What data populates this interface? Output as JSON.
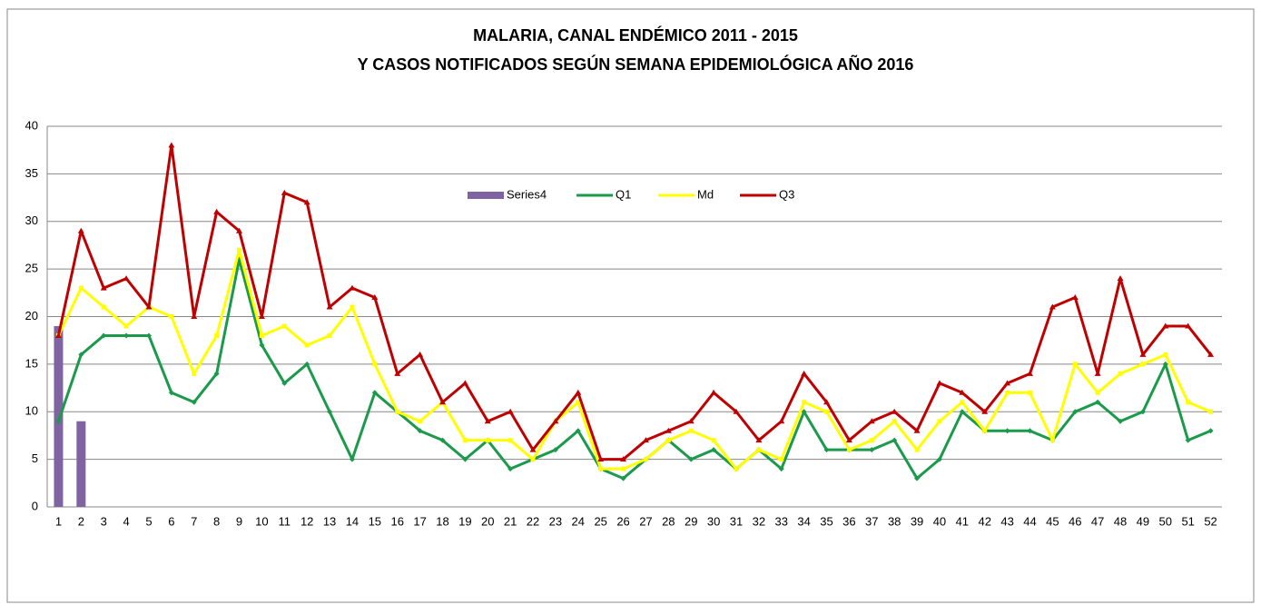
{
  "chart_data": {
    "type": "bar-line",
    "title": [
      "MALARIA, CANAL ENDÉMICO 2011 - 2015",
      "Y CASOS NOTIFICADOS SEGÚN SEMANA EPIDEMIOLÓGICA AÑO 2016"
    ],
    "categories": [
      "1",
      "2",
      "3",
      "4",
      "5",
      "6",
      "7",
      "8",
      "9",
      "10",
      "11",
      "12",
      "13",
      "14",
      "15",
      "16",
      "17",
      "18",
      "19",
      "20",
      "21",
      "22",
      "23",
      "24",
      "25",
      "26",
      "27",
      "28",
      "29",
      "30",
      "31",
      "32",
      "33",
      "34",
      "35",
      "36",
      "37",
      "38",
      "39",
      "40",
      "41",
      "42",
      "43",
      "44",
      "45",
      "46",
      "47",
      "48",
      "49",
      "50",
      "51",
      "52"
    ],
    "series": [
      {
        "name": "Series4",
        "kind": "bar",
        "color": "#8064a2",
        "values": [
          19,
          9,
          null,
          null,
          null,
          null,
          null,
          null,
          null,
          null,
          null,
          null,
          null,
          null,
          null,
          null,
          null,
          null,
          null,
          null,
          null,
          null,
          null,
          null,
          null,
          null,
          null,
          null,
          null,
          null,
          null,
          null,
          null,
          null,
          null,
          null,
          null,
          null,
          null,
          null,
          null,
          null,
          null,
          null,
          null,
          null,
          null,
          null,
          null,
          null,
          null,
          null
        ]
      },
      {
        "name": "Q1",
        "kind": "line",
        "marker": "diamond",
        "color": "#1a9a4a",
        "values": [
          9,
          16,
          18,
          18,
          18,
          12,
          11,
          14,
          26,
          17,
          13,
          15,
          10,
          5,
          12,
          10,
          8,
          7,
          5,
          7,
          4,
          5,
          6,
          8,
          4,
          3,
          5,
          7,
          5,
          6,
          4,
          6,
          4,
          10,
          6,
          6,
          6,
          7,
          3,
          5,
          10,
          8,
          8,
          8,
          7,
          10,
          11,
          9,
          10,
          15,
          7,
          8
        ]
      },
      {
        "name": "Md",
        "kind": "line",
        "marker": "square",
        "color": "#ffff00",
        "values": [
          18,
          23,
          21,
          19,
          21,
          20,
          14,
          18,
          27,
          18,
          19,
          17,
          18,
          21,
          15,
          10,
          9,
          11,
          7,
          7,
          7,
          5,
          9,
          11,
          4,
          4,
          5,
          7,
          8,
          7,
          4,
          6,
          5,
          11,
          10,
          6,
          7,
          9,
          6,
          9,
          11,
          8,
          12,
          12,
          7,
          15,
          12,
          14,
          15,
          16,
          11,
          10
        ]
      },
      {
        "name": "Q3",
        "kind": "line",
        "marker": "triangle",
        "color": "#c00000",
        "values": [
          18,
          29,
          23,
          24,
          21,
          38,
          20,
          31,
          29,
          20,
          33,
          32,
          21,
          23,
          22,
          14,
          16,
          11,
          13,
          9,
          10,
          6,
          9,
          12,
          5,
          5,
          7,
          8,
          9,
          12,
          10,
          7,
          9,
          14,
          11,
          7,
          9,
          10,
          8,
          13,
          12,
          10,
          13,
          14,
          21,
          22,
          14,
          24,
          16,
          19,
          19,
          16
        ]
      }
    ],
    "ylim": [
      0,
      40
    ],
    "yticks": [
      0,
      5,
      10,
      15,
      20,
      25,
      30,
      35,
      40
    ],
    "grid": true,
    "legend": "top-center"
  }
}
